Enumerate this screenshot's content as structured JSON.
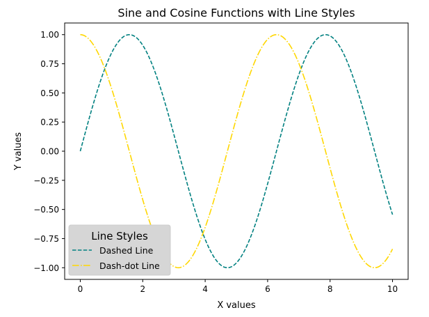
{
  "chart_data": {
    "type": "line",
    "title": "Sine and Cosine Functions with Line Styles",
    "xlabel": "X values",
    "ylabel": "Y values",
    "xlim": [
      -0.5,
      10.5
    ],
    "ylim": [
      -1.1,
      1.1
    ],
    "xticks": [
      0,
      2,
      4,
      6,
      8,
      10
    ],
    "xtick_labels": [
      "0",
      "2",
      "4",
      "6",
      "8",
      "10"
    ],
    "yticks": [
      1.0,
      0.75,
      0.5,
      0.25,
      0.0,
      -0.25,
      -0.5,
      -0.75,
      -1.0
    ],
    "ytick_labels": [
      "1.00",
      "0.75",
      "0.50",
      "0.25",
      "0.00",
      "−0.25",
      "−0.50",
      "−0.75",
      "−1.00"
    ],
    "grid": false,
    "legend": {
      "title": "Line Styles",
      "placement": "lower-left",
      "entries": [
        "Dashed Line",
        "Dash-dot Line"
      ]
    },
    "series": [
      {
        "name": "Dashed Line",
        "function": "sin(x)",
        "color": "#008080",
        "style": "dashed",
        "x": [
          0,
          0.5,
          1,
          1.5,
          2,
          2.5,
          3,
          3.5,
          4,
          4.5,
          5,
          5.5,
          6,
          6.5,
          7,
          7.5,
          8,
          8.5,
          9,
          9.5,
          10
        ],
        "y": [
          0.0,
          0.479,
          0.841,
          0.997,
          0.909,
          0.598,
          0.141,
          -0.351,
          -0.757,
          -0.978,
          -0.959,
          -0.706,
          -0.279,
          0.215,
          0.657,
          0.938,
          0.989,
          0.798,
          0.412,
          -0.075,
          -0.544
        ]
      },
      {
        "name": "Dash-dot Line",
        "function": "cos(x)",
        "color": "#FFD700",
        "style": "dashdot",
        "x": [
          0,
          0.5,
          1,
          1.5,
          2,
          2.5,
          3,
          3.5,
          4,
          4.5,
          5,
          5.5,
          6,
          6.5,
          7,
          7.5,
          8,
          8.5,
          9,
          9.5,
          10
        ],
        "y": [
          1.0,
          0.878,
          0.54,
          0.071,
          -0.416,
          -0.801,
          -0.99,
          -0.936,
          -0.654,
          -0.211,
          0.284,
          0.709,
          0.96,
          0.977,
          0.754,
          0.347,
          -0.146,
          -0.602,
          -0.911,
          -0.997,
          -0.839
        ]
      }
    ]
  }
}
